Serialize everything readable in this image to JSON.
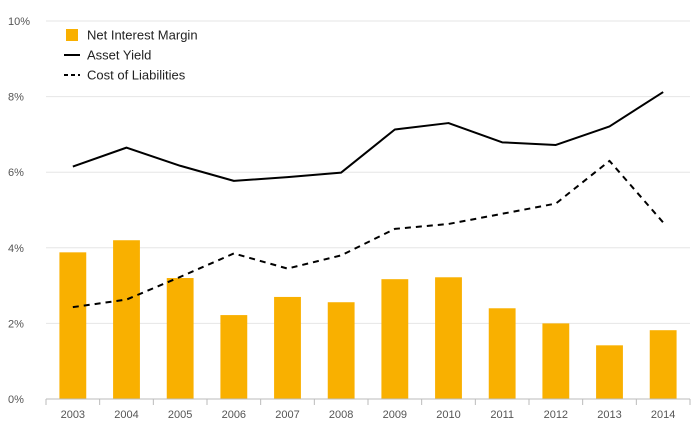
{
  "chart_data": {
    "type": "bar",
    "categories": [
      "2003",
      "2004",
      "2005",
      "2006",
      "2007",
      "2008",
      "2009",
      "2010",
      "2011",
      "2012",
      "2013",
      "2014"
    ],
    "ylim": [
      0,
      10
    ],
    "y_ticks": [
      "0%",
      "2%",
      "4%",
      "6%",
      "8%",
      "10%"
    ],
    "grid": true,
    "legend_position": "top-left",
    "series": [
      {
        "name": "Net Interest Margin",
        "kind": "bar",
        "color": "#f9b000",
        "values": [
          3.88,
          4.2,
          3.2,
          2.22,
          2.7,
          2.56,
          3.17,
          3.22,
          2.4,
          2.0,
          1.42,
          1.82
        ]
      },
      {
        "name": "Asset Yield",
        "kind": "line",
        "style": "solid",
        "color": "#000000",
        "values": [
          6.15,
          6.65,
          6.17,
          5.77,
          5.87,
          5.99,
          7.13,
          7.3,
          6.79,
          6.72,
          7.21,
          8.12
        ]
      },
      {
        "name": "Cost of Liabilities",
        "kind": "line",
        "style": "dashed",
        "color": "#000000",
        "values": [
          2.43,
          2.63,
          3.23,
          3.85,
          3.45,
          3.8,
          4.5,
          4.63,
          4.9,
          5.17,
          6.3,
          4.67
        ]
      }
    ]
  }
}
